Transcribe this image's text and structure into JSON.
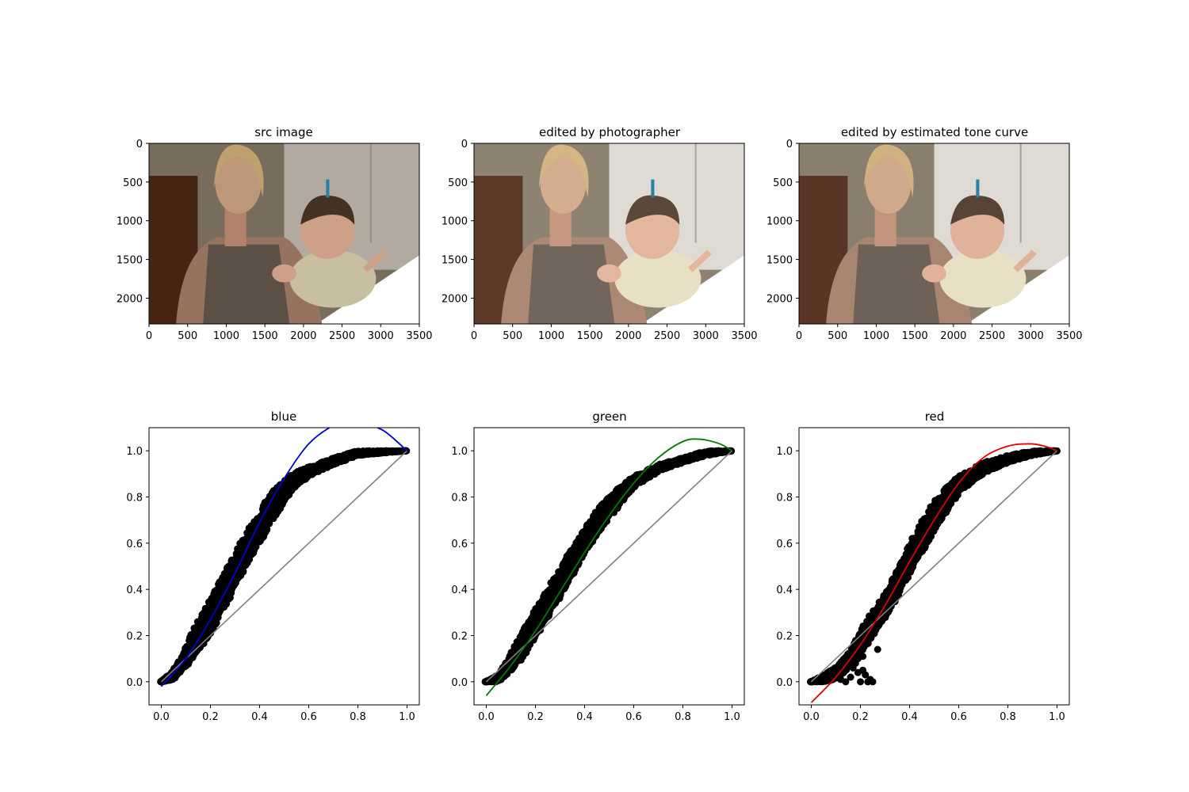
{
  "image_panels": [
    {
      "title": "src image",
      "variant": "src"
    },
    {
      "title": "edited by photographer",
      "variant": "edited"
    },
    {
      "title": "edited by estimated tone curve",
      "variant": "estimated"
    }
  ],
  "image_axes": {
    "x_ticks": [
      "0",
      "500",
      "1000",
      "1500",
      "2000",
      "2500",
      "3000",
      "3500"
    ],
    "y_ticks": [
      "0",
      "500",
      "1000",
      "1500",
      "2000"
    ],
    "x_range": [
      0,
      3500
    ],
    "y_range": [
      0,
      2333
    ]
  },
  "colors": {
    "blue": "#0000cc",
    "green": "#007700",
    "red": "#dd0000",
    "identity": "#808080",
    "scatter": "#000000"
  },
  "chart_data": [
    {
      "type": "scatter",
      "title": "blue",
      "xlim": [
        -0.05,
        1.05
      ],
      "ylim": [
        -0.1,
        1.1
      ],
      "x_ticks": [
        "0.0",
        "0.2",
        "0.4",
        "0.6",
        "0.8",
        "1.0"
      ],
      "y_ticks": [
        "0.0",
        "0.2",
        "0.4",
        "0.6",
        "0.8",
        "1.0"
      ],
      "curve_color": "blue",
      "fit_x": [
        0.0,
        0.1,
        0.2,
        0.3,
        0.4,
        0.5,
        0.6,
        0.7,
        0.75,
        0.8,
        0.9,
        1.0
      ],
      "fit_y": [
        -0.02,
        0.1,
        0.27,
        0.47,
        0.69,
        0.88,
        1.03,
        1.11,
        1.12,
        1.12,
        1.09,
        1.0
      ],
      "scatter_band": [
        [
          0.0,
          0.0,
          0.0
        ],
        [
          0.05,
          0.01,
          0.05
        ],
        [
          0.1,
          0.07,
          0.15
        ],
        [
          0.15,
          0.13,
          0.26
        ],
        [
          0.2,
          0.21,
          0.35
        ],
        [
          0.25,
          0.31,
          0.46
        ],
        [
          0.3,
          0.41,
          0.55
        ],
        [
          0.35,
          0.51,
          0.65
        ],
        [
          0.4,
          0.6,
          0.73
        ],
        [
          0.45,
          0.7,
          0.82
        ],
        [
          0.5,
          0.78,
          0.87
        ],
        [
          0.55,
          0.85,
          0.91
        ],
        [
          0.6,
          0.89,
          0.93
        ],
        [
          0.7,
          0.94,
          0.97
        ],
        [
          0.8,
          0.98,
          1.0
        ],
        [
          0.9,
          0.99,
          1.0
        ],
        [
          1.0,
          1.0,
          1.0
        ]
      ]
    },
    {
      "type": "scatter",
      "title": "green",
      "xlim": [
        -0.05,
        1.05
      ],
      "ylim": [
        -0.1,
        1.1
      ],
      "x_ticks": [
        "0.0",
        "0.2",
        "0.4",
        "0.6",
        "0.8",
        "1.0"
      ],
      "y_ticks": [
        "0.0",
        "0.2",
        "0.4",
        "0.6",
        "0.8",
        "1.0"
      ],
      "curve_color": "green",
      "fit_x": [
        0.0,
        0.1,
        0.2,
        0.3,
        0.4,
        0.5,
        0.6,
        0.7,
        0.8,
        0.87,
        0.95,
        1.0
      ],
      "fit_y": [
        -0.06,
        0.07,
        0.22,
        0.39,
        0.56,
        0.72,
        0.86,
        0.97,
        1.04,
        1.05,
        1.03,
        1.0
      ],
      "scatter_band": [
        [
          0.0,
          0.0,
          0.0
        ],
        [
          0.05,
          0.0,
          0.03
        ],
        [
          0.1,
          0.05,
          0.12
        ],
        [
          0.15,
          0.11,
          0.22
        ],
        [
          0.2,
          0.19,
          0.31
        ],
        [
          0.25,
          0.28,
          0.4
        ],
        [
          0.3,
          0.37,
          0.49
        ],
        [
          0.35,
          0.46,
          0.58
        ],
        [
          0.4,
          0.56,
          0.66
        ],
        [
          0.45,
          0.64,
          0.74
        ],
        [
          0.5,
          0.71,
          0.8
        ],
        [
          0.55,
          0.78,
          0.85
        ],
        [
          0.6,
          0.84,
          0.89
        ],
        [
          0.7,
          0.91,
          0.94
        ],
        [
          0.8,
          0.95,
          0.97
        ],
        [
          0.9,
          0.98,
          1.0
        ],
        [
          1.0,
          1.0,
          1.0
        ]
      ]
    },
    {
      "type": "scatter",
      "title": "red",
      "xlim": [
        -0.05,
        1.05
      ],
      "ylim": [
        -0.1,
        1.1
      ],
      "x_ticks": [
        "0.0",
        "0.2",
        "0.4",
        "0.6",
        "0.8",
        "1.0"
      ],
      "y_ticks": [
        "0.0",
        "0.2",
        "0.4",
        "0.6",
        "0.8",
        "1.0"
      ],
      "curve_color": "red",
      "fit_x": [
        0.0,
        0.1,
        0.2,
        0.3,
        0.4,
        0.5,
        0.6,
        0.7,
        0.8,
        0.89,
        0.95,
        1.0
      ],
      "fit_y": [
        -0.09,
        0.02,
        0.16,
        0.33,
        0.52,
        0.7,
        0.86,
        0.97,
        1.02,
        1.03,
        1.02,
        1.0
      ],
      "scatter_band": [
        [
          0.0,
          0.0,
          0.0
        ],
        [
          0.05,
          0.0,
          0.03
        ],
        [
          0.1,
          0.01,
          0.06
        ],
        [
          0.15,
          0.06,
          0.12
        ],
        [
          0.2,
          0.12,
          0.22
        ],
        [
          0.25,
          0.2,
          0.3
        ],
        [
          0.3,
          0.28,
          0.38
        ],
        [
          0.35,
          0.37,
          0.48
        ],
        [
          0.4,
          0.47,
          0.59
        ],
        [
          0.45,
          0.56,
          0.69
        ],
        [
          0.5,
          0.65,
          0.78
        ],
        [
          0.55,
          0.74,
          0.84
        ],
        [
          0.6,
          0.82,
          0.89
        ],
        [
          0.7,
          0.9,
          0.95
        ],
        [
          0.8,
          0.95,
          0.98
        ],
        [
          0.9,
          0.98,
          1.0
        ],
        [
          1.0,
          1.0,
          1.0
        ]
      ],
      "outliers": [
        [
          0.14,
          0.0
        ],
        [
          0.16,
          0.02
        ],
        [
          0.17,
          0.06
        ],
        [
          0.18,
          0.08
        ],
        [
          0.19,
          0.04
        ],
        [
          0.2,
          0.0
        ],
        [
          0.21,
          0.05
        ],
        [
          0.22,
          0.03
        ],
        [
          0.23,
          0.0
        ],
        [
          0.24,
          0.01
        ],
        [
          0.25,
          0.0
        ],
        [
          0.27,
          0.14
        ],
        [
          0.21,
          0.11
        ],
        [
          0.19,
          0.1
        ],
        [
          0.12,
          0.01
        ]
      ]
    }
  ]
}
